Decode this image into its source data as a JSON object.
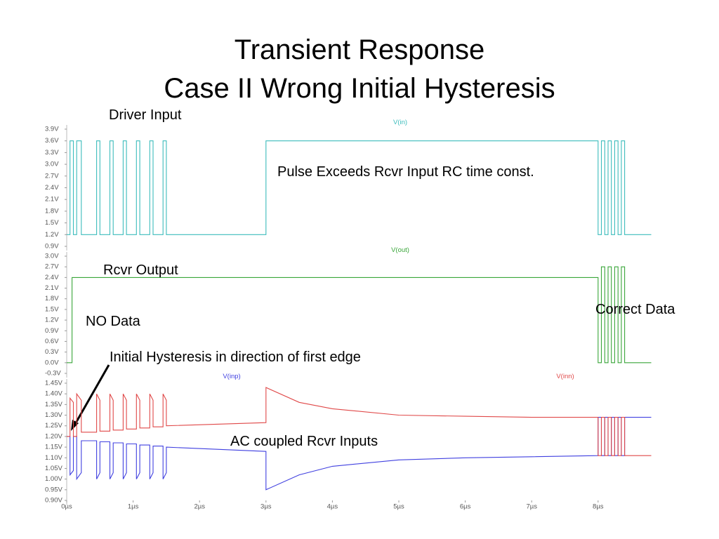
{
  "title": [
    "Transient Response",
    "Case II  Wrong Initial Hysteresis"
  ],
  "chart_data": [
    {
      "type": "line",
      "xlim": [
        0,
        8.8
      ],
      "ylim": [
        0.9,
        3.9
      ],
      "yticks": [
        {
          "value": 0.9,
          "label": "0.9V"
        },
        {
          "value": 1.2,
          "label": "1.2V"
        },
        {
          "value": 1.5,
          "label": "1.5V"
        },
        {
          "value": 1.8,
          "label": "1.8V"
        },
        {
          "value": 2.1,
          "label": "2.1V"
        },
        {
          "value": 2.4,
          "label": "2.4V"
        },
        {
          "value": 2.7,
          "label": "2.7V"
        },
        {
          "value": 3.0,
          "label": "3.0V"
        },
        {
          "value": 3.3,
          "label": "3.3V"
        },
        {
          "value": 3.6,
          "label": "3.6V"
        },
        {
          "value": 3.9,
          "label": "3.9V"
        }
      ],
      "annotations": [
        "Driver Input",
        "Pulse Exceeds  Rcvr Input RC  time const."
      ],
      "series": [
        {
          "name": "V(in)",
          "color": "#3cbcbc",
          "x": [
            0,
            0.05,
            0.05,
            0.1,
            0.1,
            0.15,
            0.15,
            0.22,
            0.22,
            0.45,
            0.45,
            0.5,
            0.5,
            0.65,
            0.65,
            0.7,
            0.7,
            0.85,
            0.85,
            0.9,
            0.9,
            1.05,
            1.05,
            1.1,
            1.1,
            1.25,
            1.25,
            1.3,
            1.3,
            1.45,
            1.45,
            1.5,
            1.5,
            3,
            3,
            8,
            8,
            8.05,
            8.05,
            8.1,
            8.1,
            8.15,
            8.15,
            8.2,
            8.2,
            8.25,
            8.25,
            8.3,
            8.3,
            8.35,
            8.35,
            8.4,
            8.4,
            8.8
          ],
          "values": [
            1.2,
            1.2,
            3.6,
            3.6,
            1.2,
            1.2,
            3.6,
            3.6,
            1.2,
            1.2,
            3.6,
            3.6,
            1.2,
            1.2,
            3.6,
            3.6,
            1.2,
            1.2,
            3.6,
            3.6,
            1.2,
            1.2,
            3.6,
            3.6,
            1.2,
            1.2,
            3.6,
            3.6,
            1.2,
            1.2,
            3.6,
            3.6,
            1.2,
            1.2,
            3.6,
            3.6,
            1.2,
            1.2,
            3.6,
            3.6,
            1.2,
            1.2,
            3.6,
            3.6,
            1.2,
            1.2,
            3.6,
            3.6,
            1.2,
            1.2,
            3.6,
            3.6,
            1.2,
            1.2
          ]
        }
      ]
    },
    {
      "type": "line",
      "xlim": [
        0,
        8.8
      ],
      "ylim": [
        -0.3,
        3.0
      ],
      "yticks": [
        {
          "value": -0.3,
          "label": "-0.3V"
        },
        {
          "value": 0,
          "label": "0.0V"
        },
        {
          "value": 0.3,
          "label": "0.3V"
        },
        {
          "value": 0.6,
          "label": "0.6V"
        },
        {
          "value": 0.9,
          "label": "0.9V"
        },
        {
          "value": 1.2,
          "label": "1.2V"
        },
        {
          "value": 1.5,
          "label": "1.5V"
        },
        {
          "value": 1.8,
          "label": "1.8V"
        },
        {
          "value": 2.1,
          "label": "2.1V"
        },
        {
          "value": 2.4,
          "label": "2.4V"
        },
        {
          "value": 2.7,
          "label": "2.7V"
        },
        {
          "value": 3.0,
          "label": "3.0V"
        }
      ],
      "annotations": [
        "Rcvr Output",
        "NO  Data",
        "Correct Data"
      ],
      "series": [
        {
          "name": "V(out)",
          "color": "#3aa63a",
          "x": [
            0,
            0.08,
            0.08,
            8,
            8,
            8.05,
            8.05,
            8.1,
            8.1,
            8.15,
            8.15,
            8.2,
            8.2,
            8.25,
            8.25,
            8.3,
            8.3,
            8.35,
            8.35,
            8.4,
            8.4,
            8.8
          ],
          "values": [
            0,
            0,
            2.4,
            2.4,
            0,
            0,
            2.7,
            2.7,
            0,
            0,
            2.7,
            2.7,
            0,
            0,
            2.7,
            2.7,
            0,
            0,
            2.7,
            2.7,
            0,
            0
          ]
        }
      ]
    },
    {
      "type": "line",
      "xlim": [
        0,
        8.8
      ],
      "ylim": [
        0.9,
        1.45
      ],
      "xticks": [
        {
          "value": 0,
          "label": "0µs"
        },
        {
          "value": 1,
          "label": "1µs"
        },
        {
          "value": 2,
          "label": "2µs"
        },
        {
          "value": 3,
          "label": "3µs"
        },
        {
          "value": 4,
          "label": "4µs"
        },
        {
          "value": 5,
          "label": "5µs"
        },
        {
          "value": 6,
          "label": "6µs"
        },
        {
          "value": 7,
          "label": "7µs"
        },
        {
          "value": 8,
          "label": "8µs"
        }
      ],
      "yticks": [
        {
          "value": 0.9,
          "label": "0.90V"
        },
        {
          "value": 0.95,
          "label": "0.95V"
        },
        {
          "value": 1.0,
          "label": "1.00V"
        },
        {
          "value": 1.05,
          "label": "1.05V"
        },
        {
          "value": 1.1,
          "label": "1.10V"
        },
        {
          "value": 1.15,
          "label": "1.15V"
        },
        {
          "value": 1.2,
          "label": "1.20V"
        },
        {
          "value": 1.25,
          "label": "1.25V"
        },
        {
          "value": 1.3,
          "label": "1.30V"
        },
        {
          "value": 1.35,
          "label": "1.35V"
        },
        {
          "value": 1.4,
          "label": "1.40V"
        },
        {
          "value": 1.45,
          "label": "1.45V"
        }
      ],
      "annotations": [
        "Initial  Hysteresis in direction of first edge",
        "AC coupled Rcvr Inputs"
      ],
      "series": [
        {
          "name": "V(inp)",
          "color": "#4040e0",
          "x": [
            0,
            0.05,
            0.05,
            0.1,
            0.1,
            0.15,
            0.15,
            0.22,
            0.22,
            0.45,
            0.45,
            0.5,
            0.5,
            0.65,
            0.65,
            0.7,
            0.7,
            0.85,
            0.85,
            0.9,
            0.9,
            1.05,
            1.05,
            1.1,
            1.1,
            1.25,
            1.25,
            1.3,
            1.3,
            1.45,
            1.45,
            1.5,
            1.5,
            3,
            3,
            3.5,
            4,
            5,
            6,
            7,
            8,
            8,
            8.05,
            8.05,
            8.1,
            8.1,
            8.15,
            8.15,
            8.2,
            8.2,
            8.25,
            8.25,
            8.3,
            8.3,
            8.35,
            8.35,
            8.4,
            8.4,
            8.8
          ],
          "values": [
            1.2,
            1.2,
            1.02,
            1.04,
            1.2,
            1.2,
            1.0,
            1.03,
            1.18,
            1.18,
            1.0,
            1.03,
            1.175,
            1.175,
            1.0,
            1.03,
            1.17,
            1.17,
            1.0,
            1.03,
            1.165,
            1.165,
            1.0,
            1.03,
            1.16,
            1.16,
            1.0,
            1.03,
            1.155,
            1.155,
            1.0,
            1.03,
            1.15,
            1.13,
            0.95,
            1.02,
            1.06,
            1.09,
            1.1,
            1.105,
            1.11,
            1.29,
            1.29,
            1.11,
            1.11,
            1.29,
            1.29,
            1.11,
            1.11,
            1.29,
            1.29,
            1.11,
            1.11,
            1.29,
            1.29,
            1.11,
            1.11,
            1.29,
            1.29
          ]
        },
        {
          "name": "V(inn)",
          "color": "#e04848",
          "x": [
            0,
            0.05,
            0.05,
            0.1,
            0.1,
            0.15,
            0.15,
            0.22,
            0.22,
            0.45,
            0.45,
            0.5,
            0.5,
            0.65,
            0.65,
            0.7,
            0.7,
            0.85,
            0.85,
            0.9,
            0.9,
            1.05,
            1.05,
            1.1,
            1.1,
            1.25,
            1.25,
            1.3,
            1.3,
            1.45,
            1.45,
            1.5,
            1.5,
            3,
            3,
            3.5,
            4,
            5,
            6,
            7,
            8,
            8,
            8.05,
            8.05,
            8.1,
            8.1,
            8.15,
            8.15,
            8.2,
            8.2,
            8.25,
            8.25,
            8.3,
            8.3,
            8.35,
            8.35,
            8.4,
            8.4,
            8.8
          ],
          "values": [
            1.2,
            1.2,
            1.38,
            1.36,
            1.2,
            1.2,
            1.4,
            1.37,
            1.22,
            1.22,
            1.4,
            1.37,
            1.225,
            1.225,
            1.4,
            1.37,
            1.23,
            1.23,
            1.4,
            1.37,
            1.235,
            1.235,
            1.4,
            1.37,
            1.24,
            1.24,
            1.4,
            1.37,
            1.245,
            1.245,
            1.4,
            1.37,
            1.25,
            1.265,
            1.43,
            1.36,
            1.33,
            1.3,
            1.295,
            1.29,
            1.29,
            1.11,
            1.11,
            1.29,
            1.29,
            1.11,
            1.11,
            1.29,
            1.29,
            1.11,
            1.11,
            1.29,
            1.29,
            1.11,
            1.11,
            1.29,
            1.29,
            1.11,
            1.11
          ]
        }
      ]
    }
  ]
}
